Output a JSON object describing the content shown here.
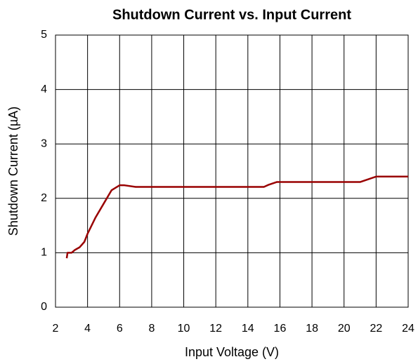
{
  "chart_data": {
    "type": "line",
    "title": "Shutdown Current vs. Input Current",
    "x_label": "Input Voltage (V)",
    "y_label": "Shutdown Current (µA)",
    "x": [
      2.7,
      2.75,
      3.0,
      3.2,
      3.5,
      3.8,
      4.0,
      4.5,
      5.0,
      5.5,
      6.0,
      6.3,
      7.0,
      10,
      15,
      15.3,
      15.8,
      21,
      21.5,
      22,
      24
    ],
    "series": [
      {
        "name": "Shutdown Current",
        "color": "#990000",
        "values": [
          0.9,
          1.0,
          1.0,
          1.05,
          1.1,
          1.2,
          1.35,
          1.65,
          1.9,
          2.15,
          2.24,
          2.24,
          2.21,
          2.21,
          2.21,
          2.25,
          2.3,
          2.3,
          2.35,
          2.4,
          2.4
        ]
      }
    ],
    "xlim": [
      2,
      24
    ],
    "xticks": [
      2,
      4,
      6,
      8,
      10,
      12,
      14,
      16,
      18,
      20,
      22,
      24
    ],
    "ylim": [
      0,
      5
    ],
    "yticks": [
      0,
      1,
      2,
      3,
      4,
      5
    ],
    "grid": true
  }
}
